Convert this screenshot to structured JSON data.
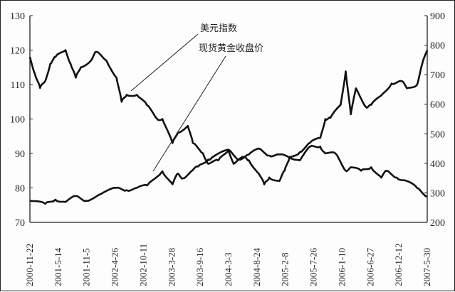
{
  "chart_data": {
    "type": "line",
    "title": "",
    "xlabel": "",
    "ylabel": "",
    "grid": false,
    "x_tick_labels": [
      "2000-11-22",
      "2001-5-14",
      "2001-11-5",
      "2002-4-26",
      "2002-10-11",
      "2003-3-28",
      "2003-9-16",
      "2004-3-3",
      "2004-8-24",
      "2005-2-8",
      "2005-7-26",
      "2006-1-10",
      "2006-6-27",
      "2006-12-12",
      "2007-5-30"
    ],
    "x_range": [
      "2000-11",
      "2007-05"
    ],
    "y_left": {
      "range": [
        70,
        130
      ],
      "ticks": [
        70,
        80,
        90,
        100,
        110,
        120,
        130
      ]
    },
    "y_right": {
      "range": [
        200,
        900
      ],
      "ticks": [
        200,
        300,
        400,
        500,
        600,
        700,
        800,
        900
      ]
    },
    "series": [
      {
        "name": "美元指数",
        "axis": "left",
        "color": "#111111",
        "points": [
          [
            "2000-11",
            118
          ],
          [
            "2000-12",
            113
          ],
          [
            "2001-01",
            109
          ],
          [
            "2001-02",
            111
          ],
          [
            "2001-03",
            116
          ],
          [
            "2001-04",
            118
          ],
          [
            "2001-06",
            120
          ],
          [
            "2001-07",
            116
          ],
          [
            "2001-08",
            112
          ],
          [
            "2001-09",
            115
          ],
          [
            "2001-11",
            117
          ],
          [
            "2001-12",
            119.5
          ],
          [
            "2002-02",
            117
          ],
          [
            "2002-04",
            112
          ],
          [
            "2002-05",
            105
          ],
          [
            "2002-06",
            107
          ],
          [
            "2002-08",
            107
          ],
          [
            "2002-10",
            104
          ],
          [
            "2002-12",
            100
          ],
          [
            "2003-01",
            100
          ],
          [
            "2003-03",
            93
          ],
          [
            "2003-04",
            96
          ],
          [
            "2003-06",
            98
          ],
          [
            "2003-07",
            93
          ],
          [
            "2003-09",
            90
          ],
          [
            "2003-10",
            87
          ],
          [
            "2003-12",
            88
          ],
          [
            "2004-02",
            91
          ],
          [
            "2004-03",
            87
          ],
          [
            "2004-05",
            89
          ],
          [
            "2004-06",
            88
          ],
          [
            "2004-08",
            84
          ],
          [
            "2004-09",
            81
          ],
          [
            "2004-10",
            83
          ],
          [
            "2004-12",
            82
          ],
          [
            "2005-01",
            85
          ],
          [
            "2005-02",
            89
          ],
          [
            "2005-04",
            88
          ],
          [
            "2005-06",
            92
          ],
          [
            "2005-08",
            92
          ],
          [
            "2005-09",
            90
          ],
          [
            "2005-11",
            90
          ],
          [
            "2006-01",
            85
          ],
          [
            "2006-02",
            86
          ],
          [
            "2006-04",
            85
          ],
          [
            "2006-06",
            86
          ],
          [
            "2006-08",
            83
          ],
          [
            "2006-09",
            85
          ],
          [
            "2006-11",
            83
          ],
          [
            "2007-01",
            82
          ],
          [
            "2007-03",
            80
          ],
          [
            "2007-05",
            77.5
          ]
        ]
      },
      {
        "name": "现货黄金收盘价",
        "axis": "right",
        "color": "#111111",
        "points": [
          [
            "2000-11",
            273
          ],
          [
            "2001-02",
            263
          ],
          [
            "2001-04",
            277
          ],
          [
            "2001-06",
            269
          ],
          [
            "2001-08",
            289
          ],
          [
            "2001-10",
            273
          ],
          [
            "2002-01",
            297
          ],
          [
            "2002-04",
            317
          ],
          [
            "2002-06",
            309
          ],
          [
            "2002-08",
            317
          ],
          [
            "2002-10",
            325
          ],
          [
            "2003-01",
            373
          ],
          [
            "2003-03",
            329
          ],
          [
            "2003-04",
            365
          ],
          [
            "2003-05",
            349
          ],
          [
            "2003-07",
            377
          ],
          [
            "2003-08",
            389
          ],
          [
            "2003-10",
            413
          ],
          [
            "2003-11",
            422
          ],
          [
            "2004-02",
            446
          ],
          [
            "2004-04",
            413
          ],
          [
            "2004-06",
            430
          ],
          [
            "2004-08",
            450
          ],
          [
            "2004-10",
            426
          ],
          [
            "2004-12",
            430
          ],
          [
            "2005-02",
            418
          ],
          [
            "2005-04",
            438
          ],
          [
            "2005-06",
            470
          ],
          [
            "2005-08",
            486
          ],
          [
            "2005-09",
            550
          ],
          [
            "2005-10",
            554
          ],
          [
            "2005-12",
            598
          ],
          [
            "2006-01",
            711
          ],
          [
            "2006-02",
            566
          ],
          [
            "2006-03",
            654
          ],
          [
            "2006-05",
            590
          ],
          [
            "2006-06",
            598
          ],
          [
            "2006-08",
            630
          ],
          [
            "2006-10",
            670
          ],
          [
            "2006-12",
            678
          ],
          [
            "2007-01",
            654
          ],
          [
            "2007-03",
            666
          ],
          [
            "2007-04",
            735
          ],
          [
            "2007-05",
            783
          ]
        ]
      }
    ],
    "annotations": [
      "美元指数",
      "现货黄金收盘价"
    ]
  }
}
